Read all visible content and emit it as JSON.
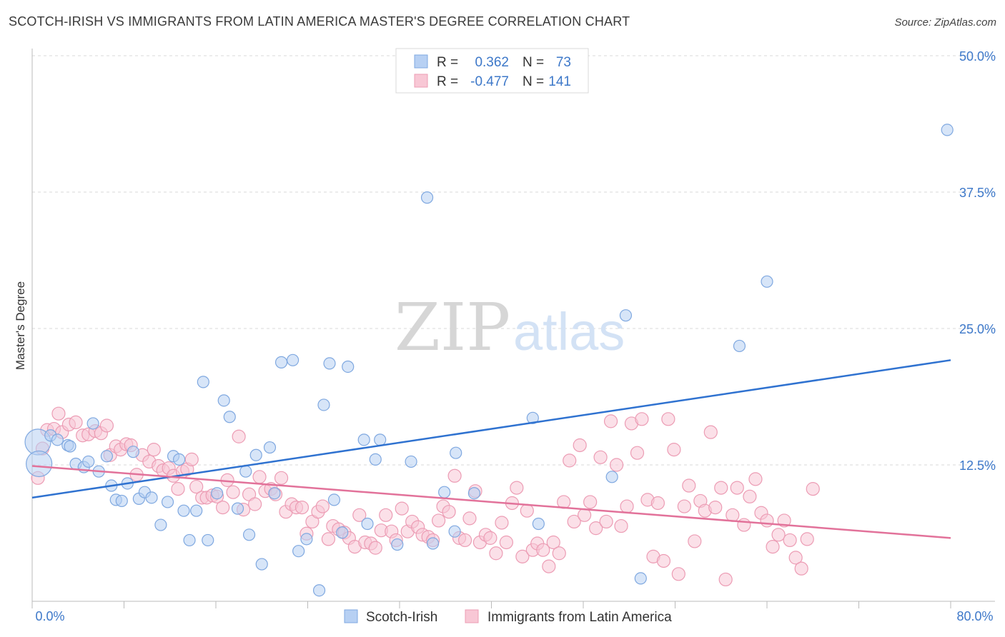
{
  "title": "SCOTCH-IRISH VS IMMIGRANTS FROM LATIN AMERICA MASTER'S DEGREE CORRELATION CHART",
  "source": "Source: ZipAtlas.com",
  "watermark": {
    "part1": "ZIP",
    "part2": "atlas"
  },
  "colors": {
    "blue_fill": "#b7d0f3",
    "blue_stroke": "#7fa8e0",
    "blue_line": "#2f72d0",
    "pink_fill": "#f8c7d5",
    "pink_stroke": "#ec9cb4",
    "pink_line": "#e2729a",
    "axis_label": "#3d78c9",
    "grid": "#d9d9d9"
  },
  "legend": {
    "items": [
      {
        "r_label": "R =",
        "r_value": "0.362",
        "n_label": "N =",
        "n_value": "73",
        "series": "blue"
      },
      {
        "r_label": "R =",
        "r_value": "-0.477",
        "n_label": "N =",
        "n_value": "141",
        "series": "pink"
      }
    ]
  },
  "chart_data": {
    "type": "scatter",
    "title": "SCOTCH-IRISH VS IMMIGRANTS FROM LATIN AMERICA MASTER'S DEGREE CORRELATION CHART",
    "xlabel": "",
    "ylabel": "Master's Degree",
    "xlim": [
      0,
      80
    ],
    "ylim": [
      0,
      50
    ],
    "x_tick_labels": [
      "0.0%",
      "80.0%"
    ],
    "y_ticks": [
      12.5,
      25.0,
      37.5,
      50.0
    ],
    "y_tick_labels": [
      "12.5%",
      "25.0%",
      "37.5%",
      "50.0%"
    ],
    "grid": true,
    "legend_position": "bottom",
    "series": [
      {
        "name": "Scotch-Irish",
        "color": "#b7d0f3",
        "trend": {
          "x": [
            0,
            80
          ],
          "y": [
            9.5,
            22.1
          ]
        },
        "points": [
          [
            0.5,
            14.6,
            18
          ],
          [
            0.6,
            12.6,
            18
          ],
          [
            1.6,
            15.2,
            8
          ],
          [
            2.2,
            14.8,
            8
          ],
          [
            3.1,
            14.3,
            8
          ],
          [
            3.3,
            14.2,
            8
          ],
          [
            3.8,
            12.6,
            8
          ],
          [
            4.5,
            12.3,
            8
          ],
          [
            4.9,
            12.8,
            8
          ],
          [
            5.3,
            16.3,
            8
          ],
          [
            5.8,
            11.9,
            8
          ],
          [
            6.5,
            13.3,
            8
          ],
          [
            6.9,
            10.6,
            8
          ],
          [
            7.3,
            9.3,
            8
          ],
          [
            7.8,
            9.2,
            8
          ],
          [
            8.3,
            10.8,
            8
          ],
          [
            8.8,
            13.7,
            8
          ],
          [
            9.3,
            9.4,
            8
          ],
          [
            9.8,
            10.0,
            8
          ],
          [
            10.4,
            9.5,
            8
          ],
          [
            11.2,
            7.0,
            8
          ],
          [
            11.8,
            9.1,
            8
          ],
          [
            12.3,
            13.3,
            8
          ],
          [
            12.8,
            13.0,
            8
          ],
          [
            13.2,
            8.3,
            8
          ],
          [
            13.7,
            5.6,
            8
          ],
          [
            14.3,
            8.3,
            8
          ],
          [
            14.9,
            20.1,
            8
          ],
          [
            15.3,
            5.6,
            8
          ],
          [
            16.1,
            9.9,
            8
          ],
          [
            16.7,
            18.4,
            8
          ],
          [
            17.2,
            16.9,
            8
          ],
          [
            17.9,
            8.5,
            8
          ],
          [
            18.6,
            11.9,
            8
          ],
          [
            18.9,
            6.1,
            8
          ],
          [
            19.5,
            13.4,
            8
          ],
          [
            20.0,
            3.4,
            8
          ],
          [
            20.7,
            14.1,
            8
          ],
          [
            21.1,
            9.9,
            8
          ],
          [
            21.7,
            21.9,
            8
          ],
          [
            22.7,
            22.1,
            8
          ],
          [
            23.2,
            4.6,
            8
          ],
          [
            23.9,
            5.7,
            8
          ],
          [
            25.0,
            1.0,
            8
          ],
          [
            25.4,
            18.0,
            8
          ],
          [
            25.9,
            21.8,
            8
          ],
          [
            26.3,
            9.3,
            8
          ],
          [
            27.0,
            6.3,
            8
          ],
          [
            27.5,
            21.5,
            8
          ],
          [
            28.9,
            14.8,
            8
          ],
          [
            29.2,
            7.1,
            8
          ],
          [
            29.9,
            13.0,
            8
          ],
          [
            30.3,
            14.8,
            8
          ],
          [
            31.8,
            5.2,
            8
          ],
          [
            33.0,
            12.8,
            8
          ],
          [
            34.4,
            37.0,
            8
          ],
          [
            34.9,
            5.3,
            8
          ],
          [
            35.9,
            10.0,
            8
          ],
          [
            36.8,
            6.4,
            8
          ],
          [
            36.9,
            13.6,
            8
          ],
          [
            38.5,
            9.9,
            8
          ],
          [
            43.6,
            16.8,
            8
          ],
          [
            44.1,
            7.1,
            8
          ],
          [
            50.5,
            11.4,
            8
          ],
          [
            51.7,
            26.2,
            8
          ],
          [
            53.0,
            2.1,
            8
          ],
          [
            61.6,
            23.4,
            8
          ],
          [
            64.0,
            29.3,
            8
          ],
          [
            79.7,
            43.2,
            8
          ]
        ]
      },
      {
        "name": "Immigrants from Latin America",
        "color": "#f8c7d5",
        "trend": {
          "x": [
            0,
            80
          ],
          "y": [
            12.4,
            5.8
          ]
        },
        "points": [
          [
            0.5,
            11.3,
            9
          ],
          [
            0.9,
            14.0,
            9
          ],
          [
            1.3,
            15.7,
            9
          ],
          [
            1.9,
            15.8,
            9
          ],
          [
            2.3,
            17.2,
            9
          ],
          [
            2.6,
            15.5,
            9
          ],
          [
            3.2,
            16.2,
            9
          ],
          [
            3.8,
            16.4,
            9
          ],
          [
            4.4,
            15.2,
            9
          ],
          [
            4.9,
            15.3,
            9
          ],
          [
            5.5,
            15.6,
            9
          ],
          [
            6.0,
            15.4,
            9
          ],
          [
            6.5,
            16.1,
            9
          ],
          [
            6.8,
            13.4,
            9
          ],
          [
            7.3,
            14.2,
            9
          ],
          [
            7.7,
            13.9,
            9
          ],
          [
            8.2,
            14.4,
            9
          ],
          [
            8.6,
            14.3,
            9
          ],
          [
            9.1,
            11.6,
            9
          ],
          [
            9.6,
            13.4,
            9
          ],
          [
            10.2,
            12.8,
            9
          ],
          [
            10.6,
            13.9,
            9
          ],
          [
            11.0,
            12.4,
            9
          ],
          [
            11.4,
            12.0,
            9
          ],
          [
            11.9,
            12.2,
            9
          ],
          [
            12.3,
            11.5,
            9
          ],
          [
            12.7,
            10.3,
            9
          ],
          [
            13.1,
            11.9,
            9
          ],
          [
            13.5,
            12.1,
            9
          ],
          [
            13.9,
            13.0,
            9
          ],
          [
            14.3,
            10.5,
            9
          ],
          [
            14.8,
            9.5,
            9
          ],
          [
            15.2,
            9.5,
            9
          ],
          [
            15.7,
            9.7,
            9
          ],
          [
            16.1,
            9.6,
            9
          ],
          [
            16.6,
            8.6,
            9
          ],
          [
            17.0,
            11.1,
            9
          ],
          [
            17.5,
            10.0,
            9
          ],
          [
            18.0,
            15.1,
            9
          ],
          [
            18.4,
            8.4,
            9
          ],
          [
            18.9,
            9.8,
            9
          ],
          [
            19.4,
            8.9,
            9
          ],
          [
            19.8,
            11.4,
            9
          ],
          [
            20.3,
            10.1,
            9
          ],
          [
            20.8,
            10.3,
            9
          ],
          [
            21.2,
            9.8,
            9
          ],
          [
            21.7,
            11.3,
            9
          ],
          [
            22.1,
            8.2,
            9
          ],
          [
            22.6,
            8.9,
            9
          ],
          [
            23.0,
            8.6,
            9
          ],
          [
            23.5,
            8.6,
            9
          ],
          [
            23.9,
            6.2,
            9
          ],
          [
            24.4,
            7.3,
            9
          ],
          [
            24.9,
            8.2,
            9
          ],
          [
            25.3,
            8.7,
            9
          ],
          [
            25.8,
            5.7,
            9
          ],
          [
            26.2,
            6.9,
            9
          ],
          [
            26.7,
            6.6,
            9
          ],
          [
            27.2,
            6.3,
            9
          ],
          [
            27.6,
            5.8,
            9
          ],
          [
            28.1,
            5.0,
            9
          ],
          [
            28.5,
            7.9,
            9
          ],
          [
            29.0,
            5.4,
            9
          ],
          [
            29.5,
            5.3,
            9
          ],
          [
            29.9,
            4.9,
            9
          ],
          [
            30.4,
            6.5,
            9
          ],
          [
            30.8,
            7.9,
            9
          ],
          [
            31.3,
            6.4,
            9
          ],
          [
            31.7,
            5.6,
            9
          ],
          [
            32.2,
            8.5,
            9
          ],
          [
            32.7,
            6.4,
            9
          ],
          [
            33.1,
            7.3,
            9
          ],
          [
            33.6,
            6.8,
            9
          ],
          [
            34.0,
            6.1,
            9
          ],
          [
            34.5,
            5.9,
            9
          ],
          [
            34.9,
            5.6,
            9
          ],
          [
            35.4,
            7.4,
            9
          ],
          [
            35.8,
            8.7,
            9
          ],
          [
            36.3,
            8.2,
            9
          ],
          [
            36.8,
            11.5,
            9
          ],
          [
            37.2,
            5.8,
            9
          ],
          [
            37.7,
            5.6,
            9
          ],
          [
            38.1,
            7.6,
            9
          ],
          [
            38.6,
            10.1,
            9
          ],
          [
            39.0,
            5.4,
            9
          ],
          [
            39.5,
            6.1,
            9
          ],
          [
            39.9,
            5.8,
            9
          ],
          [
            40.4,
            4.4,
            9
          ],
          [
            40.9,
            7.2,
            9
          ],
          [
            41.3,
            5.4,
            9
          ],
          [
            41.8,
            9.0,
            9
          ],
          [
            42.2,
            10.4,
            9
          ],
          [
            42.7,
            4.1,
            9
          ],
          [
            43.1,
            8.3,
            9
          ],
          [
            43.6,
            4.7,
            9
          ],
          [
            44.0,
            5.3,
            9
          ],
          [
            44.5,
            4.7,
            9
          ],
          [
            45.0,
            3.2,
            9
          ],
          [
            45.4,
            5.4,
            9
          ],
          [
            45.9,
            4.4,
            9
          ],
          [
            46.3,
            9.1,
            9
          ],
          [
            46.8,
            12.9,
            9
          ],
          [
            47.2,
            7.3,
            9
          ],
          [
            47.7,
            14.3,
            9
          ],
          [
            48.1,
            7.9,
            9
          ],
          [
            48.6,
            9.1,
            9
          ],
          [
            49.1,
            6.7,
            9
          ],
          [
            49.5,
            13.2,
            9
          ],
          [
            50.0,
            7.3,
            9
          ],
          [
            50.4,
            16.5,
            9
          ],
          [
            50.9,
            12.5,
            9
          ],
          [
            51.3,
            6.9,
            9
          ],
          [
            51.8,
            8.7,
            9
          ],
          [
            52.2,
            16.3,
            9
          ],
          [
            52.7,
            13.6,
            9
          ],
          [
            53.1,
            16.7,
            9
          ],
          [
            53.6,
            9.3,
            9
          ],
          [
            54.1,
            4.1,
            9
          ],
          [
            54.5,
            9.0,
            9
          ],
          [
            55.0,
            3.7,
            9
          ],
          [
            55.4,
            16.7,
            9
          ],
          [
            55.9,
            13.9,
            9
          ],
          [
            56.3,
            2.5,
            9
          ],
          [
            56.8,
            8.7,
            9
          ],
          [
            57.2,
            10.6,
            9
          ],
          [
            57.7,
            5.5,
            9
          ],
          [
            58.2,
            9.2,
            9
          ],
          [
            58.6,
            8.3,
            9
          ],
          [
            59.1,
            15.5,
            9
          ],
          [
            59.5,
            8.6,
            9
          ],
          [
            60.0,
            10.4,
            9
          ],
          [
            60.4,
            2.0,
            9
          ],
          [
            61.0,
            7.9,
            9
          ],
          [
            61.4,
            10.4,
            9
          ],
          [
            62.0,
            7.0,
            9
          ],
          [
            62.5,
            9.6,
            9
          ],
          [
            63.0,
            11.2,
            9
          ],
          [
            63.5,
            8.1,
            9
          ],
          [
            64.0,
            7.4,
            9
          ],
          [
            64.5,
            5.0,
            9
          ],
          [
            65.0,
            6.1,
            9
          ],
          [
            65.5,
            7.4,
            9
          ],
          [
            66.0,
            5.6,
            9
          ],
          [
            66.5,
            4.0,
            9
          ],
          [
            67.0,
            3.0,
            9
          ],
          [
            67.5,
            5.7,
            9
          ],
          [
            68.0,
            10.3,
            9
          ]
        ]
      }
    ]
  }
}
